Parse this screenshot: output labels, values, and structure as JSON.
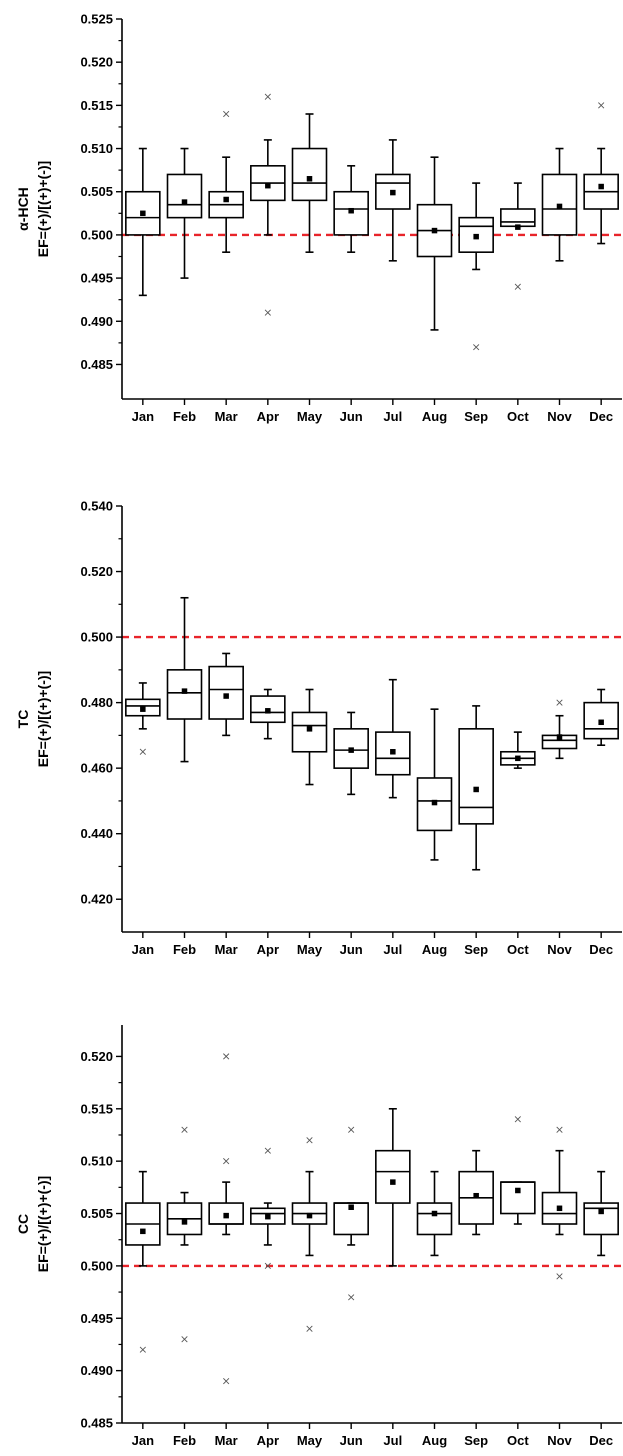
{
  "chart_data": [
    {
      "type": "box",
      "ylabel": [
        "α-HCH",
        "EF=(+)/[(+)+(-)]"
      ],
      "ylim": [
        0.481,
        0.525
      ],
      "yticks": [
        0.485,
        0.49,
        0.495,
        0.5,
        0.505,
        0.51,
        0.515,
        0.52,
        0.525
      ],
      "tick_decimals": 3,
      "reference_line": 0.5,
      "reference_color": "#e8242a",
      "categories": [
        "Jan",
        "Feb",
        "Mar",
        "Apr",
        "May",
        "Jun",
        "Jul",
        "Aug",
        "Sep",
        "Oct",
        "Nov",
        "Dec"
      ],
      "boxes": [
        {
          "whisker_low": 0.493,
          "q1": 0.5,
          "median": 0.502,
          "q3": 0.505,
          "whisker_high": 0.51,
          "mean": 0.5025,
          "outliers": []
        },
        {
          "whisker_low": 0.495,
          "q1": 0.502,
          "median": 0.5035,
          "q3": 0.507,
          "whisker_high": 0.51,
          "mean": 0.5038,
          "outliers": []
        },
        {
          "whisker_low": 0.498,
          "q1": 0.502,
          "median": 0.5035,
          "q3": 0.505,
          "whisker_high": 0.509,
          "mean": 0.5041,
          "outliers": [
            0.514
          ]
        },
        {
          "whisker_low": 0.5,
          "q1": 0.504,
          "median": 0.506,
          "q3": 0.508,
          "whisker_high": 0.511,
          "mean": 0.5057,
          "outliers": [
            0.516,
            0.491
          ]
        },
        {
          "whisker_low": 0.498,
          "q1": 0.504,
          "median": 0.506,
          "q3": 0.51,
          "whisker_high": 0.514,
          "mean": 0.5065,
          "outliers": []
        },
        {
          "whisker_low": 0.498,
          "q1": 0.5,
          "median": 0.503,
          "q3": 0.505,
          "whisker_high": 0.508,
          "mean": 0.5028,
          "outliers": []
        },
        {
          "whisker_low": 0.497,
          "q1": 0.503,
          "median": 0.506,
          "q3": 0.507,
          "whisker_high": 0.511,
          "mean": 0.5049,
          "outliers": []
        },
        {
          "whisker_low": 0.489,
          "q1": 0.4975,
          "median": 0.5005,
          "q3": 0.5035,
          "whisker_high": 0.509,
          "mean": 0.5005,
          "outliers": []
        },
        {
          "whisker_low": 0.496,
          "q1": 0.498,
          "median": 0.501,
          "q3": 0.502,
          "whisker_high": 0.506,
          "mean": 0.4998,
          "outliers": [
            0.487
          ]
        },
        {
          "whisker_low": 0.501,
          "q1": 0.501,
          "median": 0.5015,
          "q3": 0.503,
          "whisker_high": 0.506,
          "mean": 0.5009,
          "outliers": [
            0.494
          ]
        },
        {
          "whisker_low": 0.497,
          "q1": 0.5,
          "median": 0.503,
          "q3": 0.507,
          "whisker_high": 0.51,
          "mean": 0.5033,
          "outliers": []
        },
        {
          "whisker_low": 0.499,
          "q1": 0.503,
          "median": 0.505,
          "q3": 0.507,
          "whisker_high": 0.51,
          "mean": 0.5056,
          "outliers": [
            0.515
          ]
        }
      ]
    },
    {
      "type": "box",
      "ylabel": [
        "TC",
        "EF=(+)/[(+)+(-)]"
      ],
      "ylim": [
        0.41,
        0.54
      ],
      "yticks": [
        0.42,
        0.44,
        0.46,
        0.48,
        0.5,
        0.52,
        0.54
      ],
      "tick_decimals": 3,
      "reference_line": 0.5,
      "reference_color": "#e8242a",
      "categories": [
        "Jan",
        "Feb",
        "Mar",
        "Apr",
        "May",
        "Jun",
        "Jul",
        "Aug",
        "Sep",
        "Oct",
        "Nov",
        "Dec"
      ],
      "boxes": [
        {
          "whisker_low": 0.472,
          "q1": 0.476,
          "median": 0.479,
          "q3": 0.481,
          "whisker_high": 0.486,
          "mean": 0.478,
          "outliers": [
            0.465
          ]
        },
        {
          "whisker_low": 0.462,
          "q1": 0.475,
          "median": 0.483,
          "q3": 0.49,
          "whisker_high": 0.512,
          "mean": 0.4835,
          "outliers": []
        },
        {
          "whisker_low": 0.47,
          "q1": 0.475,
          "median": 0.484,
          "q3": 0.491,
          "whisker_high": 0.495,
          "mean": 0.482,
          "outliers": []
        },
        {
          "whisker_low": 0.469,
          "q1": 0.474,
          "median": 0.477,
          "q3": 0.482,
          "whisker_high": 0.484,
          "mean": 0.4775,
          "outliers": []
        },
        {
          "whisker_low": 0.455,
          "q1": 0.465,
          "median": 0.473,
          "q3": 0.477,
          "whisker_high": 0.484,
          "mean": 0.472,
          "outliers": []
        },
        {
          "whisker_low": 0.452,
          "q1": 0.46,
          "median": 0.4655,
          "q3": 0.472,
          "whisker_high": 0.477,
          "mean": 0.4655,
          "outliers": []
        },
        {
          "whisker_low": 0.451,
          "q1": 0.458,
          "median": 0.463,
          "q3": 0.471,
          "whisker_high": 0.487,
          "mean": 0.465,
          "outliers": []
        },
        {
          "whisker_low": 0.432,
          "q1": 0.441,
          "median": 0.45,
          "q3": 0.457,
          "whisker_high": 0.478,
          "mean": 0.4495,
          "outliers": []
        },
        {
          "whisker_low": 0.429,
          "q1": 0.443,
          "median": 0.448,
          "q3": 0.472,
          "whisker_high": 0.479,
          "mean": 0.4535,
          "outliers": []
        },
        {
          "whisker_low": 0.46,
          "q1": 0.461,
          "median": 0.463,
          "q3": 0.465,
          "whisker_high": 0.471,
          "mean": 0.463,
          "outliers": []
        },
        {
          "whisker_low": 0.463,
          "q1": 0.466,
          "median": 0.4685,
          "q3": 0.47,
          "whisker_high": 0.476,
          "mean": 0.4695,
          "outliers": [
            0.48
          ]
        },
        {
          "whisker_low": 0.467,
          "q1": 0.469,
          "median": 0.472,
          "q3": 0.48,
          "whisker_high": 0.484,
          "mean": 0.474,
          "outliers": []
        }
      ]
    },
    {
      "type": "box",
      "ylabel": [
        "CC",
        "EF=(+)/[(+)+(-)]"
      ],
      "ylim": [
        0.485,
        0.523
      ],
      "yticks": [
        0.485,
        0.49,
        0.495,
        0.5,
        0.505,
        0.51,
        0.515,
        0.52
      ],
      "tick_decimals": 3,
      "reference_line": 0.5,
      "reference_color": "#e8242a",
      "categories": [
        "Jan",
        "Feb",
        "Mar",
        "Apr",
        "May",
        "Jun",
        "Jul",
        "Aug",
        "Sep",
        "Oct",
        "Nov",
        "Dec"
      ],
      "boxes": [
        {
          "whisker_low": 0.5,
          "q1": 0.502,
          "median": 0.504,
          "q3": 0.506,
          "whisker_high": 0.509,
          "mean": 0.5033,
          "outliers": [
            0.492
          ]
        },
        {
          "whisker_low": 0.502,
          "q1": 0.503,
          "median": 0.5045,
          "q3": 0.506,
          "whisker_high": 0.507,
          "mean": 0.5042,
          "outliers": [
            0.513,
            0.493
          ]
        },
        {
          "whisker_low": 0.503,
          "q1": 0.504,
          "median": 0.504,
          "q3": 0.506,
          "whisker_high": 0.508,
          "mean": 0.5048,
          "outliers": [
            0.51,
            0.489,
            0.52
          ]
        },
        {
          "whisker_low": 0.502,
          "q1": 0.504,
          "median": 0.505,
          "q3": 0.5055,
          "whisker_high": 0.506,
          "mean": 0.5047,
          "outliers": [
            0.511,
            0.5
          ]
        },
        {
          "whisker_low": 0.501,
          "q1": 0.504,
          "median": 0.505,
          "q3": 0.506,
          "whisker_high": 0.509,
          "mean": 0.5048,
          "outliers": [
            0.512,
            0.494
          ]
        },
        {
          "whisker_low": 0.502,
          "q1": 0.503,
          "median": 0.506,
          "q3": 0.506,
          "whisker_high": 0.506,
          "mean": 0.5056,
          "outliers": [
            0.513,
            0.497
          ]
        },
        {
          "whisker_low": 0.5,
          "q1": 0.506,
          "median": 0.509,
          "q3": 0.511,
          "whisker_high": 0.515,
          "mean": 0.508,
          "outliers": []
        },
        {
          "whisker_low": 0.501,
          "q1": 0.503,
          "median": 0.505,
          "q3": 0.506,
          "whisker_high": 0.509,
          "mean": 0.505,
          "outliers": []
        },
        {
          "whisker_low": 0.503,
          "q1": 0.504,
          "median": 0.5065,
          "q3": 0.509,
          "whisker_high": 0.511,
          "mean": 0.5067,
          "outliers": []
        },
        {
          "whisker_low": 0.504,
          "q1": 0.505,
          "median": 0.508,
          "q3": 0.508,
          "whisker_high": 0.508,
          "mean": 0.5072,
          "outliers": [
            0.514
          ]
        },
        {
          "whisker_low": 0.503,
          "q1": 0.504,
          "median": 0.505,
          "q3": 0.507,
          "whisker_high": 0.511,
          "mean": 0.5055,
          "outliers": [
            0.513,
            0.499
          ]
        },
        {
          "whisker_low": 0.501,
          "q1": 0.503,
          "median": 0.5055,
          "q3": 0.506,
          "whisker_high": 0.509,
          "mean": 0.5052,
          "outliers": []
        }
      ]
    }
  ]
}
